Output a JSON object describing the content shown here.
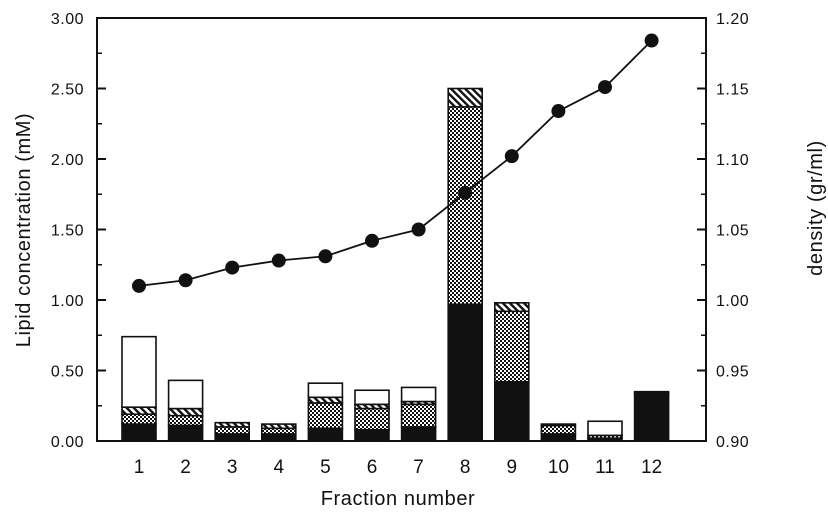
{
  "chart_data": {
    "type": "bar",
    "categories": [
      "1",
      "2",
      "3",
      "4",
      "5",
      "6",
      "7",
      "8",
      "9",
      "10",
      "11",
      "12"
    ],
    "xlabel": "Fraction number",
    "ylabel": "Lipid concentration (mM)",
    "y2label": "density (gr/ml)",
    "ylim": [
      0,
      3.0
    ],
    "y_ticks": [
      "0.00",
      "0.50",
      "1.00",
      "1.50",
      "2.00",
      "2.50",
      "3.00"
    ],
    "y2lim": [
      0.9,
      1.2
    ],
    "y2_ticks": [
      "0.90",
      "0.95",
      "1.00",
      "1.05",
      "1.10",
      "1.15",
      "1.20"
    ],
    "stacked": true,
    "series": [
      {
        "fill": "solid-black",
        "values": [
          0.12,
          0.11,
          0.05,
          0.05,
          0.09,
          0.08,
          0.1,
          0.97,
          0.42,
          0.05,
          0.02,
          0.33
        ]
      },
      {
        "fill": "cross-hatch",
        "values": [
          0.07,
          0.07,
          0.05,
          0.04,
          0.18,
          0.15,
          0.16,
          1.4,
          0.5,
          0.06,
          0.02,
          0.01
        ]
      },
      {
        "fill": "diagonal-hatch",
        "values": [
          0.05,
          0.05,
          0.03,
          0.03,
          0.04,
          0.03,
          0.02,
          0.13,
          0.06,
          0.01,
          0.0,
          0.01
        ]
      },
      {
        "fill": "white",
        "values": [
          0.5,
          0.2,
          0.0,
          0.0,
          0.1,
          0.1,
          0.1,
          0.0,
          0.0,
          0.0,
          0.1,
          0.0
        ]
      }
    ],
    "line_series": {
      "axis": "right",
      "values": [
        1.01,
        1.014,
        1.023,
        1.028,
        1.031,
        1.042,
        1.05,
        1.076,
        1.102,
        1.134,
        1.151,
        1.184
      ]
    }
  }
}
